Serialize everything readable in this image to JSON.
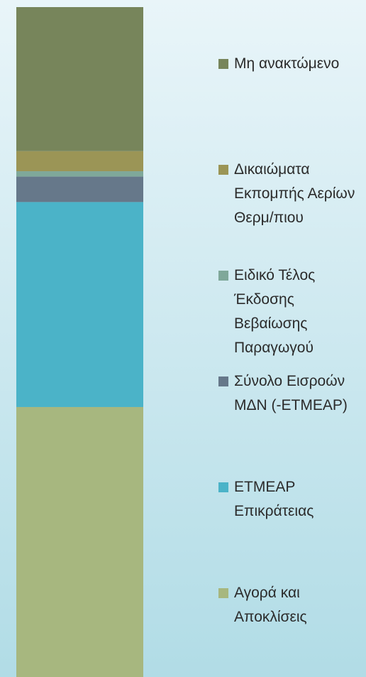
{
  "chart_data": {
    "type": "stacked_bar",
    "categories": [
      null
    ],
    "ylim": [
      0,
      100
    ],
    "series": [
      {
        "name": "Μη ανακτώμενο",
        "color": "#77855b",
        "values": [
          21.5
        ]
      },
      {
        "name": "Δικαιώματα Εκπομπής Αερίων Θερμ/πιου",
        "color": "#9b9556",
        "values": [
          3.0
        ]
      },
      {
        "name": "Ειδικό Τέλος Έκδοσης Βεβαίωσης Παραγωγού",
        "color": "#7fa89a",
        "values": [
          0.8
        ]
      },
      {
        "name": "Σύνολο Εισροών ΜΔΝ (-ETMEAP)",
        "color": "#66788a",
        "values": [
          3.8
        ]
      },
      {
        "name": "ETMEAP Επικράτειας",
        "color": "#4bb3c8",
        "values": [
          30.6
        ]
      },
      {
        "name": "Αγορά και Αποκλίσεις",
        "color": "#a7b77f",
        "values": [
          40.3
        ]
      }
    ]
  }
}
